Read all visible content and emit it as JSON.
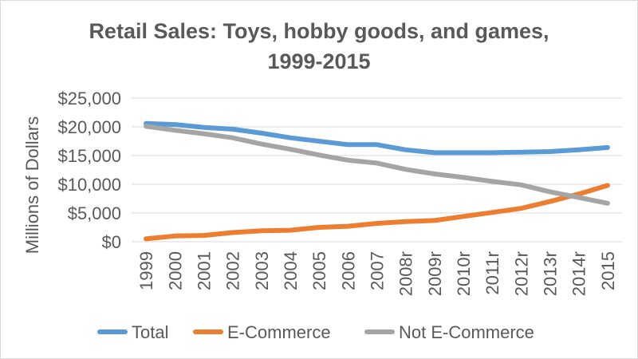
{
  "chart_data": {
    "type": "line",
    "title_lines": [
      "Retail Sales: Toys, hobby goods, and games,",
      "1999-2015"
    ],
    "ylabel": "Millions of Dollars",
    "xlabel": "",
    "ylim": [
      0,
      25000
    ],
    "y_ticks": [
      0,
      5000,
      10000,
      15000,
      20000,
      25000
    ],
    "y_tick_labels": [
      "$0",
      "$5,000",
      "$10,000",
      "$15,000",
      "$20,000",
      "$25,000"
    ],
    "grid": "horizontal",
    "legend_position": "bottom",
    "categories": [
      "1999",
      "2000",
      "2001",
      "2002",
      "2003",
      "2004",
      "2005",
      "2006",
      "2007",
      "2008r",
      "2009r",
      "2010r",
      "2011r",
      "2012r",
      "2013r",
      "2014r",
      "2015"
    ],
    "series": [
      {
        "name": "Total",
        "color": "#5b9bd5",
        "values": [
          20600,
          20400,
          19900,
          19600,
          18900,
          18100,
          17500,
          16900,
          16900,
          16000,
          15500,
          15500,
          15500,
          15600,
          15700,
          16000,
          16400
        ]
      },
      {
        "name": "E-Commerce",
        "color": "#ed7d31",
        "values": [
          500,
          1000,
          1100,
          1600,
          1900,
          2000,
          2500,
          2700,
          3200,
          3500,
          3700,
          4400,
          5100,
          5800,
          7000,
          8300,
          9800
        ]
      },
      {
        "name": "Not E-Commerce",
        "color": "#a5a5a5",
        "values": [
          20100,
          19400,
          18800,
          18100,
          17000,
          16100,
          15100,
          14200,
          13700,
          12600,
          11800,
          11200,
          10500,
          9900,
          8700,
          7700,
          6700
        ]
      }
    ]
  }
}
